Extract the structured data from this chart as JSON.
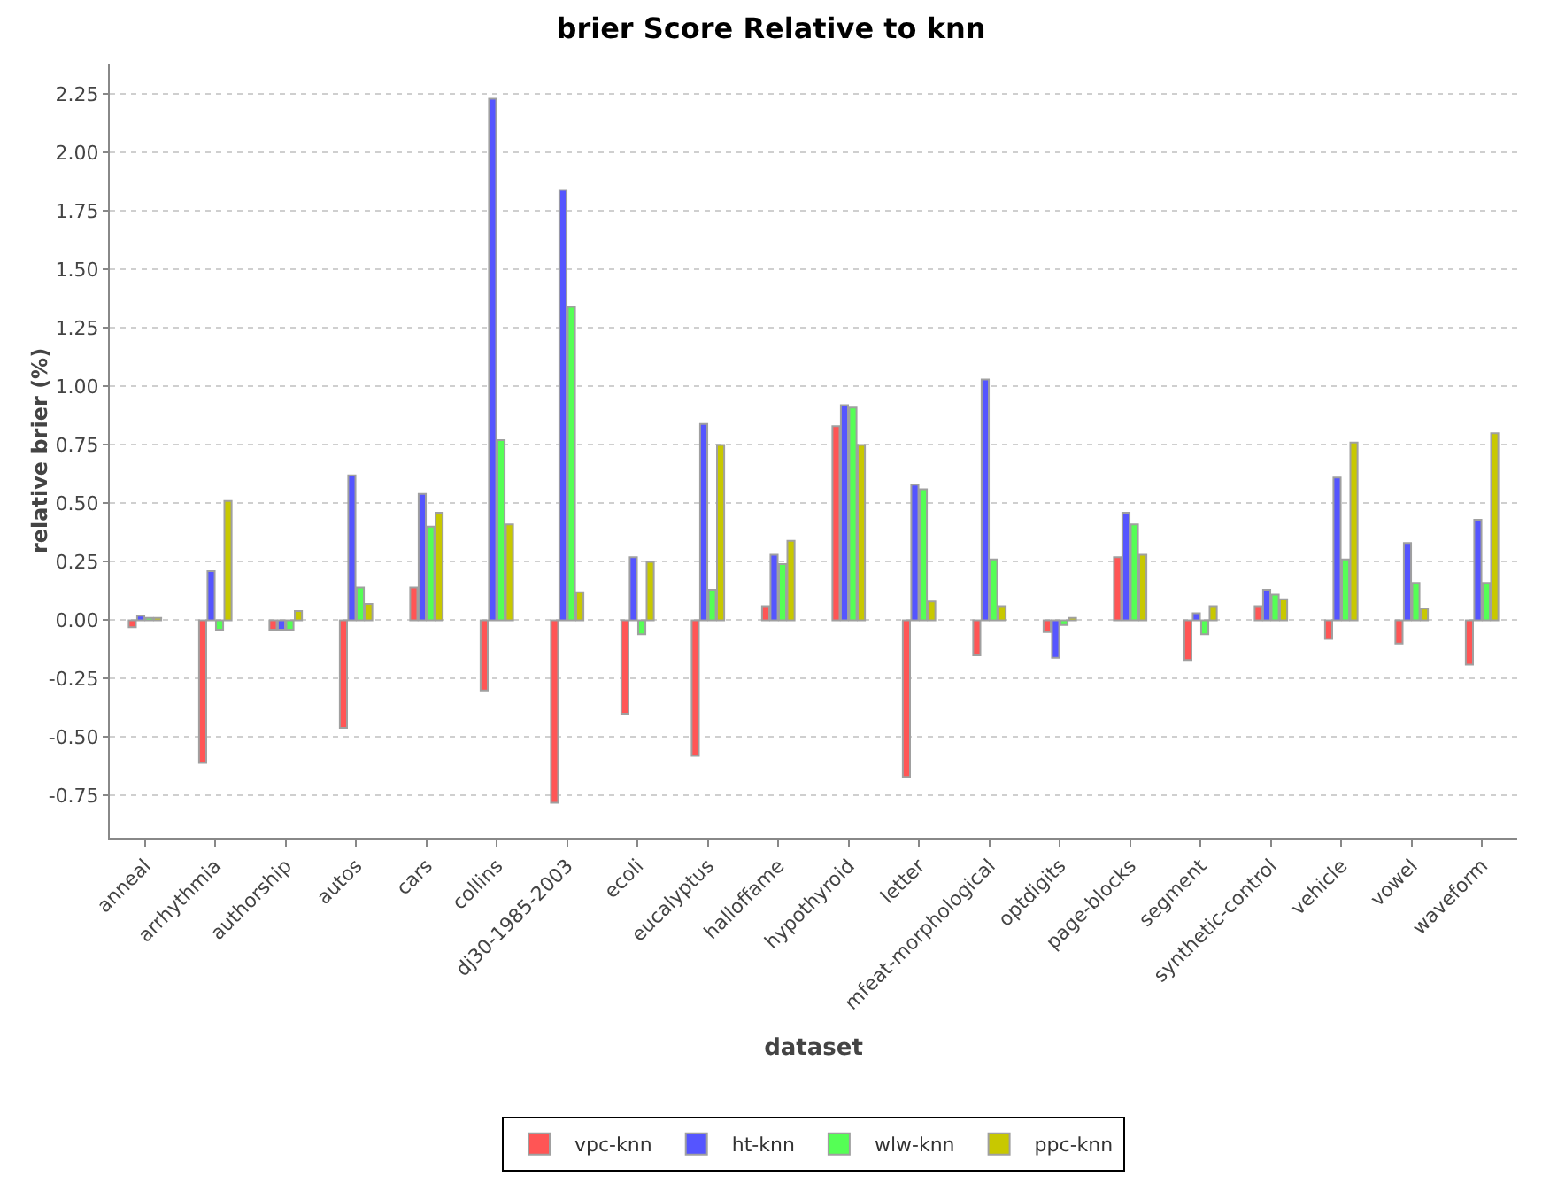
{
  "chart_data": {
    "type": "bar",
    "title": "brier Score Relative to knn",
    "xlabel": "dataset",
    "ylabel": "relative brier (%)",
    "categories": [
      "anneal",
      "arrhythmia",
      "authorship",
      "autos",
      "cars",
      "collins",
      "dj30-1985-2003",
      "ecoli",
      "eucalyptus",
      "halloffame",
      "hypothyroid",
      "letter",
      "mfeat-morphological",
      "optdigits",
      "page-blocks",
      "segment",
      "synthetic-control",
      "vehicle",
      "vowel",
      "waveform"
    ],
    "series": [
      {
        "name": "vpc-knn",
        "color": "#ff5555",
        "values": [
          -0.03,
          -0.61,
          -0.04,
          -0.46,
          0.14,
          -0.3,
          -0.78,
          -0.4,
          -0.58,
          0.06,
          0.83,
          -0.67,
          -0.15,
          -0.05,
          0.27,
          -0.17,
          0.06,
          -0.08,
          -0.1,
          -0.19
        ]
      },
      {
        "name": "ht-knn",
        "color": "#5555ff",
        "values": [
          0.02,
          0.21,
          -0.04,
          0.62,
          0.54,
          2.23,
          1.84,
          0.27,
          0.84,
          0.28,
          0.92,
          0.58,
          1.03,
          -0.16,
          0.46,
          0.03,
          0.13,
          0.61,
          0.33,
          0.43
        ]
      },
      {
        "name": "wlw-knn",
        "color": "#55ff55",
        "values": [
          0.01,
          -0.04,
          -0.04,
          0.14,
          0.4,
          0.77,
          1.34,
          -0.06,
          0.13,
          0.24,
          0.91,
          0.56,
          0.26,
          -0.02,
          0.41,
          -0.06,
          0.11,
          0.26,
          0.16,
          0.16
        ]
      },
      {
        "name": "ppc-knn",
        "color": "#c8c800",
        "values": [
          0.01,
          0.51,
          0.04,
          0.07,
          0.46,
          0.41,
          0.12,
          0.25,
          0.75,
          0.34,
          0.75,
          0.08,
          0.06,
          0.01,
          0.28,
          0.06,
          0.09,
          0.76,
          0.05,
          0.8
        ]
      }
    ],
    "ylim": [
      -0.93,
      2.38
    ],
    "yticks": [
      {
        "value": -0.75,
        "label": "-0.75"
      },
      {
        "value": -0.5,
        "label": "-0.50"
      },
      {
        "value": -0.25,
        "label": "-0.25"
      },
      {
        "value": 0,
        "label": "0.00"
      },
      {
        "value": 0.25,
        "label": "0.25"
      },
      {
        "value": 0.5,
        "label": "0.50"
      },
      {
        "value": 0.75,
        "label": "0.75"
      },
      {
        "value": 1,
        "label": "1.00"
      },
      {
        "value": 1.25,
        "label": "1.25"
      },
      {
        "value": 1.5,
        "label": "1.50"
      },
      {
        "value": 1.75,
        "label": "1.75"
      },
      {
        "value": 2,
        "label": "2.00"
      },
      {
        "value": 2.25,
        "label": "2.25"
      }
    ],
    "grid": "y",
    "legend": "bottom"
  }
}
